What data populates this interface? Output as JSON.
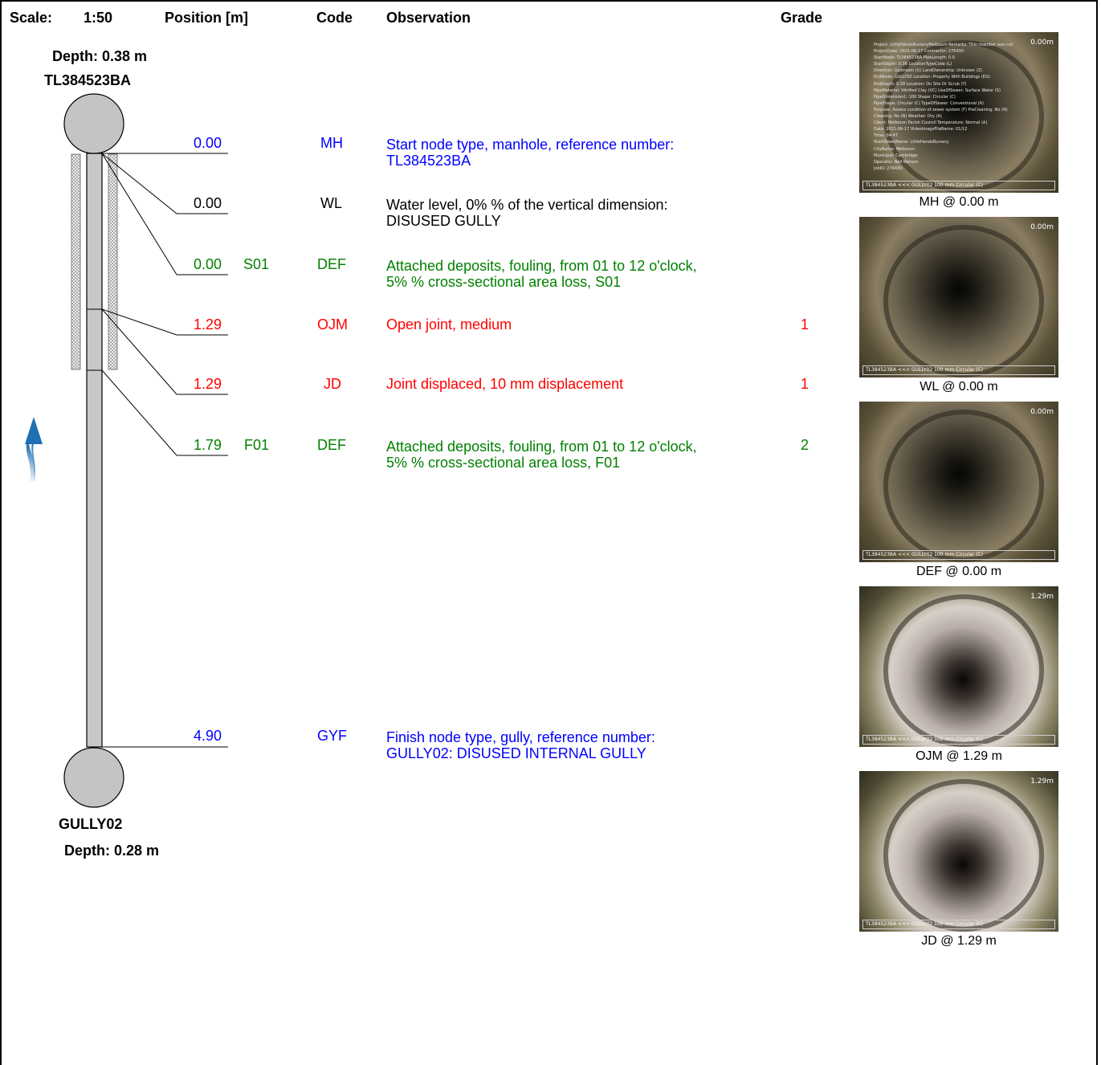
{
  "header": {
    "scale_label": "Scale:",
    "scale_value": "1:50",
    "position_label": "Position [m]",
    "code_label": "Code",
    "observation_label": "Observation",
    "grade_label": "Grade"
  },
  "start_node": {
    "depth": "Depth: 0.38 m",
    "name": "TL384523BA"
  },
  "finish_node": {
    "name": "GULLY02",
    "depth": "Depth: 0.28 m"
  },
  "flow_direction": "upstream",
  "observations": [
    {
      "position": "0.00",
      "clock": "",
      "code": "MH",
      "line1": "Start node type, manhole, reference number:",
      "line2": "TL384523BA",
      "grade": "",
      "color": "#0000ff"
    },
    {
      "position": "0.00",
      "clock": "",
      "code": "WL",
      "line1": "Water level, 0% % of the vertical dimension:",
      "line2": "DISUSED GULLY",
      "grade": "",
      "color": "#000000"
    },
    {
      "position": "0.00",
      "clock": "S01",
      "code": "DEF",
      "line1": "Attached deposits, fouling, from 01 to 12 o'clock,",
      "line2": "5% % cross-sectional area loss, S01",
      "grade": "",
      "color": "#008000"
    },
    {
      "position": "1.29",
      "clock": "",
      "code": "OJM",
      "line1": "Open joint, medium",
      "line2": "",
      "grade": "1",
      "color": "#ff0000"
    },
    {
      "position": "1.29",
      "clock": "",
      "code": "JD",
      "line1": "Joint displaced, 10 mm displacement",
      "line2": "",
      "grade": "1",
      "color": "#ff0000"
    },
    {
      "position": "1.79",
      "clock": "F01",
      "code": "DEF",
      "line1": "Attached deposits, fouling, from 01 to 12 o'clock,",
      "line2": "5% % cross-sectional area loss, F01",
      "grade": "2",
      "color": "#008000"
    },
    {
      "position": "4.90",
      "clock": "",
      "code": "GYF",
      "line1": "Finish node type, gully, reference number:",
      "line2": "GULLY02: DISUSED INTERNAL GULLY",
      "grade": "",
      "color": "#0000ff"
    }
  ],
  "photos": [
    {
      "caption": "MH @ 0.00 m",
      "stamp": "0.00m",
      "strip": "TL384523BA <<< GULLY02 100 mm Circular (C)",
      "overlay": [
        "Project: LittleHandsNurseryMelbourn        Remarks: This chamber was not",
        "ProjectDate: 2021-06-17                    Contractor: 276430",
        "StartNode: TL384523BA                      PipeLength: 0.0",
        "StartDepth: 0.38                           LocationTypeCode (L)",
        "Direction: Upstream (U)                    LandOwnership: Unknown (Z)",
        "EndNode: GULLY02                           Location: Property With Buildings (EG)",
        "EndDepth: 0.28                             Location: On Site Or Scrub (Y)",
        "PipeMaterial: Vitrified Clay (VC)          UseOfSewer: Surface Water (S)",
        "PipeDimension1: 100                        Shape: Circular (C)",
        "PipeShape: Circular (C)                    TypeOfSewer: Conventional (A)",
        "Purpose: Assess condition of sewer system (F)   PreCleaning: No (N)",
        "Cleaning: No (N)                           Weather: Dry (A)",
        "Client: Melbourn Parish Council            Temperature: Normal (A)",
        "Date: 2021-06-17                           VideoImageFileName: 01/12",
        "Time: 04:47",
        "StartStreetName: LittleHandsNursery",
        "CityName: Melbourn",
        "Municipal: Cambridge",
        "Operator: Neil Watson",
        "JobID: 276430"
      ]
    },
    {
      "caption": "WL @ 0.00 m",
      "stamp": "0.00m",
      "strip": "TL384523BA <<< GULLY02 100 mm Circular (C)",
      "overlay": []
    },
    {
      "caption": "DEF @ 0.00 m",
      "stamp": "0.00m",
      "strip": "TL384523BA <<< GULLY02 100 mm Circular (C)",
      "overlay": []
    },
    {
      "caption": "OJM @ 1.29 m",
      "stamp": "1.29m",
      "strip": "TL384523BA <<< GULLY02 100 mm Circular (C)",
      "overlay": []
    },
    {
      "caption": "JD @ 1.29 m",
      "stamp": "1.29m",
      "strip": "TL384523BA <<< GULLY02 100 mm Circular (C)",
      "overlay": []
    }
  ],
  "colors": {
    "pipe_fill": "#c8c8c8",
    "node_fill": "#c4c4c4",
    "flow_arrow": "#1f6fb2"
  }
}
